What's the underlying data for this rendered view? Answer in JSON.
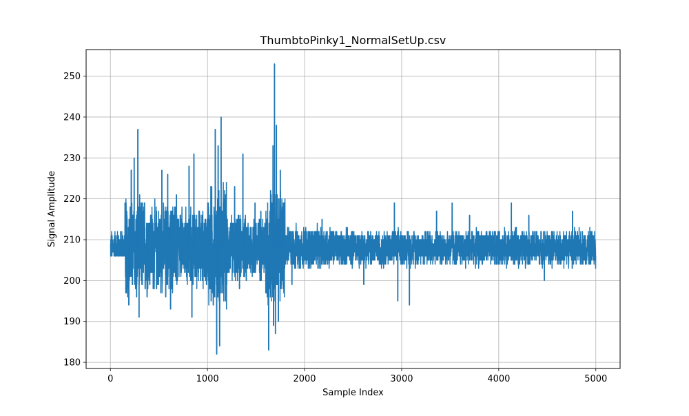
{
  "chart_data": {
    "type": "line",
    "title": "ThumbtoPinky1_NormalSetUp.csv",
    "xlabel": "Sample Index",
    "ylabel": "Signal Amplitude",
    "xlim": [
      -250,
      5250
    ],
    "ylim": [
      178.5,
      256.5
    ],
    "xticks": [
      0,
      1000,
      2000,
      3000,
      4000,
      5000
    ],
    "yticks": [
      180,
      190,
      200,
      210,
      220,
      230,
      240,
      250
    ],
    "grid": true,
    "series_color": "#1f77b4",
    "series": [
      {
        "baseline": 208,
        "n_samples": 5000,
        "segments": [
          {
            "x": [
              0,
              150
            ],
            "min": 206,
            "max": 216
          },
          {
            "x": [
              150,
              400
            ],
            "min": 194,
            "max": 222
          },
          {
            "x": [
              400,
              700
            ],
            "min": 196,
            "max": 221
          },
          {
            "x": [
              700,
              1000
            ],
            "min": 198,
            "max": 220
          },
          {
            "x": [
              1000,
              1200
            ],
            "min": 190,
            "max": 225
          },
          {
            "x": [
              1200,
              1600
            ],
            "min": 199,
            "max": 217
          },
          {
            "x": [
              1600,
              1800
            ],
            "min": 192,
            "max": 224
          },
          {
            "x": [
              1800,
              2300
            ],
            "min": 202,
            "max": 214
          },
          {
            "x": [
              2300,
              5000
            ],
            "min": 203,
            "max": 213
          }
        ],
        "peaks": [
          {
            "x": 190,
            "y": 194
          },
          {
            "x": 215,
            "y": 227
          },
          {
            "x": 245,
            "y": 230
          },
          {
            "x": 270,
            "y": 196
          },
          {
            "x": 283,
            "y": 237
          },
          {
            "x": 295,
            "y": 191
          },
          {
            "x": 345,
            "y": 218
          },
          {
            "x": 390,
            "y": 205
          },
          {
            "x": 530,
            "y": 227
          },
          {
            "x": 570,
            "y": 196
          },
          {
            "x": 590,
            "y": 226
          },
          {
            "x": 620,
            "y": 193
          },
          {
            "x": 680,
            "y": 221
          },
          {
            "x": 740,
            "y": 204
          },
          {
            "x": 810,
            "y": 228
          },
          {
            "x": 840,
            "y": 191
          },
          {
            "x": 860,
            "y": 231
          },
          {
            "x": 930,
            "y": 200
          },
          {
            "x": 1010,
            "y": 218
          },
          {
            "x": 1060,
            "y": 194
          },
          {
            "x": 1080,
            "y": 237
          },
          {
            "x": 1095,
            "y": 182
          },
          {
            "x": 1110,
            "y": 233
          },
          {
            "x": 1125,
            "y": 184
          },
          {
            "x": 1140,
            "y": 240
          },
          {
            "x": 1165,
            "y": 199
          },
          {
            "x": 1280,
            "y": 223
          },
          {
            "x": 1330,
            "y": 198
          },
          {
            "x": 1365,
            "y": 231
          },
          {
            "x": 1400,
            "y": 200
          },
          {
            "x": 1490,
            "y": 219
          },
          {
            "x": 1550,
            "y": 217
          },
          {
            "x": 1630,
            "y": 183
          },
          {
            "x": 1650,
            "y": 222
          },
          {
            "x": 1675,
            "y": 233
          },
          {
            "x": 1680,
            "y": 189
          },
          {
            "x": 1690,
            "y": 253
          },
          {
            "x": 1700,
            "y": 187
          },
          {
            "x": 1710,
            "y": 238
          },
          {
            "x": 1730,
            "y": 190
          },
          {
            "x": 1750,
            "y": 227
          },
          {
            "x": 1780,
            "y": 218
          },
          {
            "x": 1870,
            "y": 199
          },
          {
            "x": 2180,
            "y": 215
          },
          {
            "x": 2610,
            "y": 199
          },
          {
            "x": 2925,
            "y": 219
          },
          {
            "x": 2960,
            "y": 195
          },
          {
            "x": 3080,
            "y": 194
          },
          {
            "x": 3360,
            "y": 217
          },
          {
            "x": 3520,
            "y": 219
          },
          {
            "x": 3700,
            "y": 216
          },
          {
            "x": 4130,
            "y": 219
          },
          {
            "x": 4310,
            "y": 216
          },
          {
            "x": 4470,
            "y": 200
          },
          {
            "x": 4760,
            "y": 217
          },
          {
            "x": 4960,
            "y": 212
          }
        ]
      }
    ]
  }
}
